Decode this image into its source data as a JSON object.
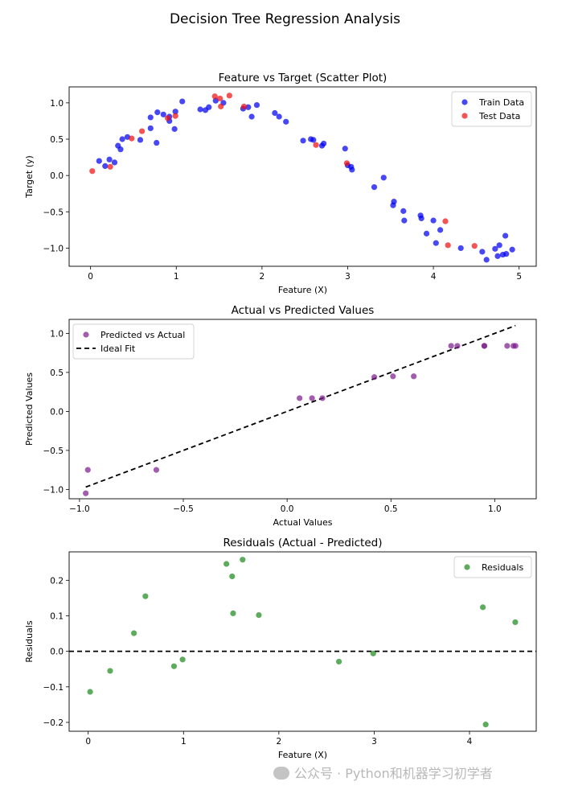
{
  "figure_title": "Decision Tree Regression Analysis",
  "watermark": "公众号 · Python和机器学习初学者",
  "colors": {
    "train": "#0000ee",
    "test": "#ee1111",
    "pred": "#7f1f8f",
    "resid": "#1f8a1f",
    "ideal": "#000000"
  },
  "chart_data": [
    {
      "id": "scatter",
      "type": "scatter",
      "title": "Feature vs Target (Scatter Plot)",
      "xlabel": "Feature (X)",
      "ylabel": "Target (y)",
      "xlim": [
        -0.25,
        5.2
      ],
      "ylim": [
        -1.25,
        1.22
      ],
      "xticks": [
        0,
        1,
        2,
        3,
        4,
        5
      ],
      "xtick_labels": [
        "0",
        "1",
        "2",
        "3",
        "4",
        "5"
      ],
      "yticks": [
        -1.0,
        -0.5,
        0.0,
        0.5,
        1.0
      ],
      "ytick_labels": [
        "−1.0",
        "−0.5",
        "0.0",
        "0.5",
        "1.0"
      ],
      "legend": "upper right",
      "series": [
        {
          "name": "Train Data",
          "color_key": "train",
          "x": [
            0.1,
            0.17,
            0.22,
            0.28,
            0.32,
            0.35,
            0.37,
            0.43,
            0.58,
            0.7,
            0.7,
            0.77,
            0.78,
            0.85,
            0.92,
            0.92,
            0.98,
            0.99,
            1.07,
            1.28,
            1.34,
            1.38,
            1.46,
            1.55,
            1.78,
            1.84,
            1.88,
            1.94,
            2.15,
            2.2,
            2.28,
            2.48,
            2.57,
            2.6,
            2.7,
            2.72,
            2.97,
            3.0,
            3.04,
            3.05,
            3.31,
            3.42,
            3.53,
            3.54,
            3.65,
            3.66,
            3.85,
            3.86,
            3.92,
            4.0,
            4.03,
            4.08,
            4.32,
            4.57,
            4.62,
            4.72,
            4.75,
            4.77,
            4.81,
            4.84,
            4.85,
            4.92
          ],
          "y": [
            0.2,
            0.13,
            0.22,
            0.18,
            0.41,
            0.36,
            0.5,
            0.53,
            0.49,
            0.65,
            0.8,
            0.45,
            0.87,
            0.84,
            0.75,
            0.81,
            0.64,
            0.88,
            1.02,
            0.91,
            0.9,
            0.94,
            1.03,
            1.0,
            0.92,
            0.94,
            0.81,
            0.97,
            0.86,
            0.81,
            0.74,
            0.48,
            0.5,
            0.49,
            0.41,
            0.44,
            0.37,
            0.14,
            0.12,
            0.08,
            -0.16,
            -0.03,
            -0.41,
            -0.36,
            -0.49,
            -0.62,
            -0.55,
            -0.59,
            -0.8,
            -0.62,
            -0.93,
            -0.75,
            -1.0,
            -1.05,
            -1.16,
            -1.01,
            -1.11,
            -0.96,
            -1.09,
            -0.83,
            -1.08,
            -1.02
          ]
        },
        {
          "name": "Test Data",
          "color_key": "test",
          "x": [
            0.02,
            0.23,
            0.48,
            0.6,
            0.9,
            0.99,
            1.45,
            1.51,
            1.52,
            1.62,
            1.79,
            2.63,
            2.99,
            4.14,
            4.17,
            4.48
          ],
          "y": [
            0.06,
            0.12,
            0.51,
            0.61,
            0.79,
            0.82,
            1.09,
            1.06,
            0.95,
            1.1,
            0.95,
            0.42,
            0.17,
            -0.63,
            -0.96,
            -0.97
          ]
        }
      ]
    },
    {
      "id": "actual_vs_pred",
      "type": "scatter",
      "title": "Actual vs Predicted Values",
      "xlabel": "Actual Values",
      "ylabel": "Predicted Values",
      "xlim": [
        -1.05,
        1.2
      ],
      "ylim": [
        -1.12,
        1.18
      ],
      "xticks": [
        -1.0,
        -0.5,
        0.0,
        0.5,
        1.0
      ],
      "xtick_labels": [
        "−1.0",
        "−0.5",
        "0.0",
        "0.5",
        "1.0"
      ],
      "yticks": [
        -1.0,
        -0.5,
        0.0,
        0.5,
        1.0
      ],
      "ytick_labels": [
        "−1.0",
        "−0.5",
        "0.0",
        "0.5",
        "1.0"
      ],
      "legend": "upper left",
      "series": [
        {
          "name": "Predicted vs Actual",
          "color_key": "pred",
          "x": [
            0.06,
            0.12,
            0.51,
            0.61,
            0.79,
            0.82,
            1.09,
            1.06,
            0.95,
            1.1,
            0.95,
            0.42,
            0.17,
            -0.63,
            -0.96,
            -0.97
          ],
          "y": [
            0.17,
            0.17,
            0.45,
            0.45,
            0.84,
            0.84,
            0.84,
            0.84,
            0.84,
            0.84,
            0.84,
            0.44,
            0.17,
            -0.75,
            -0.75,
            -1.05
          ]
        }
      ],
      "ideal_fit": {
        "name": "Ideal Fit",
        "x": [
          -0.97,
          1.1
        ],
        "y": [
          -0.97,
          1.1
        ]
      }
    },
    {
      "id": "residuals",
      "type": "scatter",
      "title": "Residuals (Actual - Predicted)",
      "xlabel": "Feature (X)",
      "ylabel": "Residuals",
      "xlim": [
        -0.2,
        4.7
      ],
      "ylim": [
        -0.225,
        0.28
      ],
      "xticks": [
        0,
        1,
        2,
        3,
        4
      ],
      "xtick_labels": [
        "0",
        "1",
        "2",
        "3",
        "4"
      ],
      "yticks": [
        -0.2,
        -0.1,
        0.0,
        0.1,
        0.2
      ],
      "ytick_labels": [
        "−0.2",
        "−0.1",
        "0.0",
        "0.1",
        "0.2"
      ],
      "legend": "upper right",
      "series": [
        {
          "name": "Residuals",
          "color_key": "resid",
          "x": [
            0.02,
            0.23,
            0.48,
            0.6,
            0.9,
            0.99,
            1.45,
            1.51,
            1.52,
            1.62,
            1.79,
            2.63,
            2.99,
            4.14,
            4.17,
            4.48
          ],
          "y": [
            -0.114,
            -0.055,
            0.051,
            0.155,
            -0.042,
            -0.023,
            0.246,
            0.211,
            0.107,
            0.258,
            0.102,
            -0.029,
            -0.006,
            0.124,
            -0.206,
            0.082
          ]
        }
      ],
      "zero_line": 0
    }
  ]
}
